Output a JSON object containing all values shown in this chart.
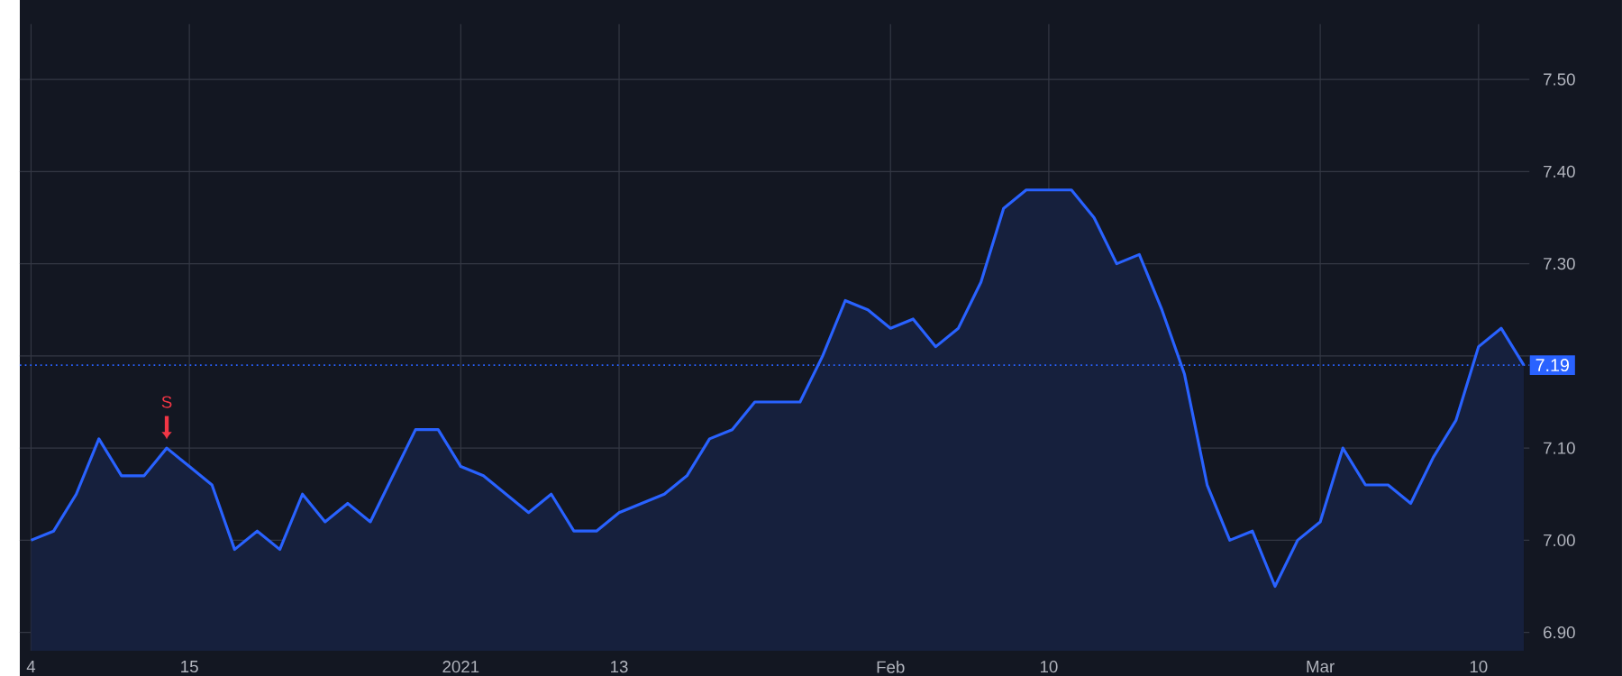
{
  "chart_data": {
    "type": "area",
    "categories": [
      "4",
      null,
      null,
      null,
      null,
      null,
      null,
      "15",
      null,
      null,
      null,
      null,
      null,
      null,
      null,
      null,
      null,
      null,
      null,
      "2021",
      null,
      null,
      null,
      null,
      null,
      null,
      "13",
      null,
      null,
      null,
      null,
      null,
      null,
      null,
      null,
      null,
      null,
      null,
      "Feb",
      null,
      null,
      null,
      null,
      null,
      null,
      "10",
      null,
      null,
      null,
      null,
      null,
      null,
      null,
      null,
      null,
      null,
      null,
      "Mar",
      null,
      null,
      null,
      null,
      null,
      null,
      "10",
      null,
      null
    ],
    "series": [
      {
        "color": "#2962ff",
        "values": [
          7.0,
          7.01,
          7.05,
          7.11,
          7.07,
          7.07,
          7.1,
          7.08,
          7.06,
          6.99,
          7.01,
          6.99,
          7.05,
          7.02,
          7.04,
          7.02,
          7.07,
          7.12,
          7.12,
          7.08,
          7.07,
          7.05,
          7.03,
          7.05,
          7.01,
          7.01,
          7.03,
          7.04,
          7.05,
          7.07,
          7.11,
          7.12,
          7.15,
          7.15,
          7.15,
          7.2,
          7.26,
          7.25,
          7.23,
          7.24,
          7.21,
          7.23,
          7.28,
          7.36,
          7.38,
          7.38,
          7.38,
          7.35,
          7.3,
          7.31,
          7.25,
          7.18,
          7.06,
          7.0,
          7.01,
          6.95,
          7.0,
          7.02,
          7.1,
          7.06,
          7.06,
          7.04,
          7.09,
          7.13,
          7.21,
          7.23,
          7.19
        ]
      }
    ],
    "ylim": [
      6.88,
      7.56
    ],
    "yticks": [
      {
        "value": 6.9,
        "label": "6.90"
      },
      {
        "value": 7.0,
        "label": "7.00"
      },
      {
        "value": 7.1,
        "label": "7.10"
      },
      {
        "value": 7.2,
        "label": null
      },
      {
        "value": 7.3,
        "label": "7.30"
      },
      {
        "value": 7.4,
        "label": "7.40"
      },
      {
        "value": 7.5,
        "label": "7.50"
      }
    ],
    "ref_lines": [
      {
        "axis": "y",
        "value": 7.19,
        "label": "7.19",
        "color": "#2962ff",
        "line_style": "dotted"
      }
    ],
    "annotations": [
      {
        "text": "S",
        "y": 7.1
      }
    ],
    "grid": true
  }
}
